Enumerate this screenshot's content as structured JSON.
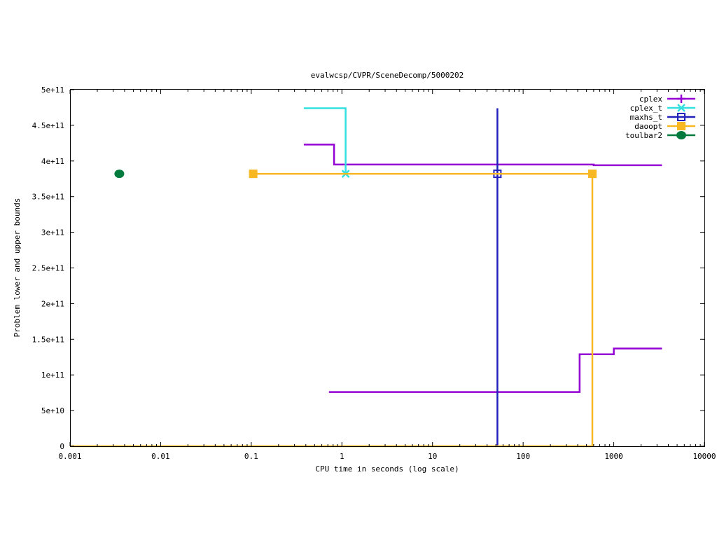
{
  "chart_data": {
    "type": "line",
    "title": "evalwcsp/CVPR/SceneDecomp/5000202",
    "xlabel": "CPU time in seconds (log scale)",
    "ylabel": "Problem lower and upper bounds",
    "xscale": "log",
    "xlim": [
      0.001,
      10000
    ],
    "ylim": [
      0,
      500000000000
    ],
    "grid": false,
    "legend_position": "top-right",
    "x_ticks": [
      {
        "value": 0.001,
        "label": "0.001"
      },
      {
        "value": 0.01,
        "label": "0.01"
      },
      {
        "value": 0.1,
        "label": "0.1"
      },
      {
        "value": 1,
        "label": "1"
      },
      {
        "value": 10,
        "label": "10"
      },
      {
        "value": 100,
        "label": "100"
      },
      {
        "value": 1000,
        "label": "1000"
      },
      {
        "value": 10000,
        "label": "10000"
      }
    ],
    "y_ticks": [
      {
        "value": 0,
        "label": "0"
      },
      {
        "value": 50000000000,
        "label": "5e+10"
      },
      {
        "value": 100000000000,
        "label": "1e+11"
      },
      {
        "value": 150000000000,
        "label": "1.5e+11"
      },
      {
        "value": 200000000000,
        "label": "2e+11"
      },
      {
        "value": 250000000000,
        "label": "2.5e+11"
      },
      {
        "value": 300000000000,
        "label": "3e+11"
      },
      {
        "value": 350000000000,
        "label": "3.5e+11"
      },
      {
        "value": 400000000000,
        "label": "4e+11"
      },
      {
        "value": 450000000000,
        "label": "4.5e+11"
      },
      {
        "value": 500000000000,
        "label": "5e+11"
      }
    ],
    "series": [
      {
        "name": "cplex",
        "color": "#9400d3",
        "marker": "plus",
        "lines": [
          [
            [
              0.38,
              423000000000
            ],
            [
              0.82,
              423000000000
            ],
            [
              0.82,
              395000000000
            ],
            [
              600,
              395000000000
            ],
            [
              600,
              394000000000
            ],
            [
              3400,
              394000000000
            ]
          ],
          [
            [
              0.72,
              76000000000
            ],
            [
              420,
              76000000000
            ],
            [
              420,
              129000000000
            ],
            [
              1000,
              129000000000
            ],
            [
              1000,
              137000000000
            ],
            [
              3400,
              137000000000
            ]
          ]
        ],
        "markers": []
      },
      {
        "name": "cplex_t",
        "color": "#33e0e0",
        "marker": "cross",
        "lines": [
          [
            [
              0.38,
              474000000000
            ],
            [
              1.1,
              474000000000
            ],
            [
              1.1,
              382000000000
            ]
          ]
        ],
        "markers": [
          [
            1.1,
            382000000000
          ]
        ]
      },
      {
        "name": "maxhs_t",
        "color": "#2222bb",
        "marker": "open-square",
        "lines": [
          [
            [
              52,
              474000000000
            ],
            [
              52,
              0
            ]
          ]
        ],
        "markers": [
          [
            52,
            382000000000
          ]
        ]
      },
      {
        "name": "daoopt",
        "color": "#f8b824",
        "marker": "filled-square",
        "lines": [
          [
            [
              0.105,
              382000000000
            ],
            [
              580,
              382000000000
            ],
            [
              580,
              0
            ]
          ],
          [
            [
              0.001,
              0
            ],
            [
              580,
              0
            ]
          ]
        ],
        "markers": [
          [
            0.105,
            382000000000
          ],
          [
            580,
            382000000000
          ]
        ]
      },
      {
        "name": "toulbar2",
        "color": "#007a3d",
        "marker": "filled-circle",
        "lines": [],
        "markers": [
          [
            0.0035,
            382000000000
          ]
        ]
      }
    ]
  }
}
